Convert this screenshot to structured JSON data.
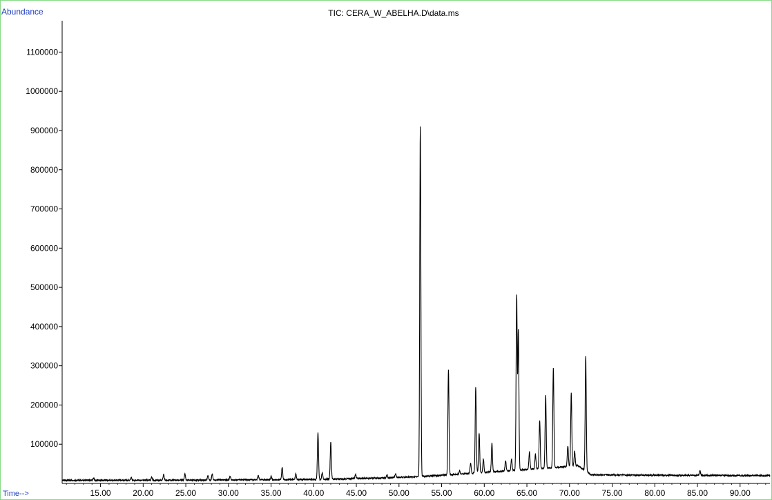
{
  "chart_data": {
    "type": "line",
    "title": "TIC: CERA_W_ABELHA.D\\data.ms",
    "ylabel": "Abundance",
    "xlabel": "Time-->",
    "xlim": [
      10.5,
      93.5
    ],
    "ylim": [
      0,
      1180000
    ],
    "x_ticks": [
      "15.00",
      "20.00",
      "25.00",
      "30.00",
      "35.00",
      "40.00",
      "45.00",
      "50.00",
      "55.00",
      "60.00",
      "65.00",
      "70.00",
      "75.00",
      "80.00",
      "85.00",
      "90.00"
    ],
    "y_ticks": [
      "100000",
      "200000",
      "300000",
      "400000",
      "500000",
      "600000",
      "700000",
      "800000",
      "900000",
      "1000000",
      "1100000"
    ],
    "series": [
      {
        "color": "#000000",
        "baseline": [
          [
            10.5,
            8000
          ],
          [
            20,
            8000
          ],
          [
            30,
            9000
          ],
          [
            40,
            10000
          ],
          [
            48,
            14000
          ],
          [
            52,
            17000
          ],
          [
            56,
            22000
          ],
          [
            60,
            28000
          ],
          [
            64,
            34000
          ],
          [
            68,
            40000
          ],
          [
            71,
            45000
          ],
          [
            72.5,
            22000
          ],
          [
            80,
            21000
          ],
          [
            93.5,
            20000
          ]
        ],
        "peaks": [
          {
            "x": 14.2,
            "y": 14000
          },
          {
            "x": 18.6,
            "y": 15000
          },
          {
            "x": 21.0,
            "y": 16000
          },
          {
            "x": 22.4,
            "y": 22000
          },
          {
            "x": 24.9,
            "y": 24000
          },
          {
            "x": 27.6,
            "y": 20000
          },
          {
            "x": 28.1,
            "y": 25000
          },
          {
            "x": 30.2,
            "y": 18000
          },
          {
            "x": 33.5,
            "y": 20000
          },
          {
            "x": 35.0,
            "y": 18000
          },
          {
            "x": 36.3,
            "y": 40000
          },
          {
            "x": 37.9,
            "y": 24000
          },
          {
            "x": 40.5,
            "y": 130000
          },
          {
            "x": 41.0,
            "y": 28000
          },
          {
            "x": 42.0,
            "y": 105000
          },
          {
            "x": 44.9,
            "y": 23000
          },
          {
            "x": 48.6,
            "y": 22000
          },
          {
            "x": 49.6,
            "y": 25000
          },
          {
            "x": 52.5,
            "y": 910000
          },
          {
            "x": 55.8,
            "y": 290000
          },
          {
            "x": 57.1,
            "y": 32000
          },
          {
            "x": 58.4,
            "y": 52000
          },
          {
            "x": 59.0,
            "y": 245000
          },
          {
            "x": 59.4,
            "y": 128000
          },
          {
            "x": 59.9,
            "y": 62000
          },
          {
            "x": 60.9,
            "y": 102000
          },
          {
            "x": 62.5,
            "y": 58000
          },
          {
            "x": 63.2,
            "y": 62000
          },
          {
            "x": 63.8,
            "y": 480000
          },
          {
            "x": 64.0,
            "y": 390000
          },
          {
            "x": 65.3,
            "y": 80000
          },
          {
            "x": 66.0,
            "y": 75000
          },
          {
            "x": 66.5,
            "y": 160000
          },
          {
            "x": 67.2,
            "y": 225000
          },
          {
            "x": 68.1,
            "y": 295000
          },
          {
            "x": 69.8,
            "y": 95000
          },
          {
            "x": 70.2,
            "y": 230000
          },
          {
            "x": 70.6,
            "y": 82000
          },
          {
            "x": 71.9,
            "y": 325000
          },
          {
            "x": 85.3,
            "y": 32000
          }
        ]
      }
    ]
  }
}
